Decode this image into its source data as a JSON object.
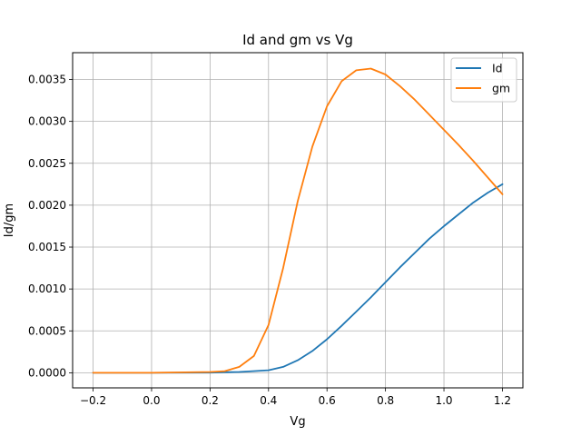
{
  "chart_data": {
    "type": "line",
    "title": "Id and gm vs Vg",
    "xlabel": "Vg",
    "ylabel": "Id/gm",
    "xlim": [
      -0.27,
      1.27
    ],
    "ylim": [
      -0.00018,
      0.00382
    ],
    "xticks": [
      -0.2,
      0.0,
      0.2,
      0.4,
      0.6,
      0.8,
      1.0,
      1.2
    ],
    "xtick_labels": [
      "−0.2",
      "0.0",
      "0.2",
      "0.4",
      "0.6",
      "0.8",
      "1.0",
      "1.2"
    ],
    "yticks": [
      0.0,
      0.0005,
      0.001,
      0.0015,
      0.002,
      0.0025,
      0.003,
      0.0035
    ],
    "ytick_labels": [
      "0.0000",
      "0.0005",
      "0.0010",
      "0.0015",
      "0.0020",
      "0.0025",
      "0.0030",
      "0.0035"
    ],
    "grid": true,
    "legend_position": "top-right",
    "series": [
      {
        "name": "Id",
        "color": "#1f77b4",
        "x": [
          -0.2,
          0.0,
          0.2,
          0.3,
          0.4,
          0.45,
          0.5,
          0.55,
          0.6,
          0.65,
          0.7,
          0.75,
          0.8,
          0.85,
          0.9,
          0.95,
          1.0,
          1.05,
          1.1,
          1.15,
          1.2
        ],
        "y": [
          0.0,
          0.0,
          2e-06,
          1e-05,
          3e-05,
          7e-05,
          0.00015,
          0.00026,
          0.0004,
          0.00056,
          0.00073,
          0.0009,
          0.00108,
          0.00126,
          0.00143,
          0.0016,
          0.00175,
          0.00189,
          0.00203,
          0.00215,
          0.00225
        ]
      },
      {
        "name": "gm",
        "color": "#ff7f0e",
        "x": [
          -0.2,
          0.0,
          0.2,
          0.25,
          0.3,
          0.35,
          0.4,
          0.45,
          0.5,
          0.55,
          0.6,
          0.65,
          0.7,
          0.75,
          0.8,
          0.85,
          0.9,
          0.95,
          1.0,
          1.05,
          1.1,
          1.15,
          1.2
        ],
        "y": [
          0.0,
          0.0,
          1e-05,
          2e-05,
          7e-05,
          0.0002,
          0.00057,
          0.00125,
          0.00205,
          0.0027,
          0.00318,
          0.00348,
          0.00361,
          0.00363,
          0.00356,
          0.00342,
          0.00326,
          0.00308,
          0.0029,
          0.00272,
          0.00253,
          0.00233,
          0.00213
        ]
      }
    ]
  }
}
